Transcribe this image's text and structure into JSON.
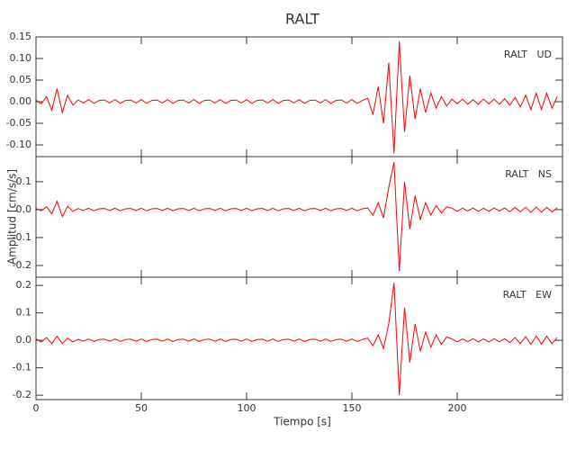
{
  "chart_data": [
    {
      "type": "line",
      "title": "RALT",
      "label": "RALT   UD",
      "color": "#ff0000",
      "xlim": [
        0,
        250
      ],
      "ylim": [
        -0.127,
        0.15
      ],
      "yticks": [
        0.15,
        {
          "value": 0.1,
          "label": "0.10"
        },
        0.05,
        {
          "value": 0,
          "label": "0.00"
        },
        -0.05,
        {
          "value": -0.1,
          "label": "-0.10"
        }
      ],
      "x": [
        0,
        2.5,
        5,
        7.5,
        10,
        12.5,
        15,
        17.5,
        20,
        22.5,
        25,
        27.5,
        30,
        32.5,
        35,
        37.5,
        40,
        42.5,
        45,
        47.5,
        50,
        52.5,
        55,
        57.5,
        60,
        62.5,
        65,
        67.5,
        70,
        72.5,
        75,
        77.5,
        80,
        82.5,
        85,
        87.5,
        90,
        92.5,
        95,
        97.5,
        100,
        102.5,
        105,
        107.5,
        110,
        112.5,
        115,
        117.5,
        120,
        122.5,
        125,
        127.5,
        130,
        132.5,
        135,
        137.5,
        140,
        142.5,
        145,
        147.5,
        150,
        152.5,
        155,
        157.5,
        160,
        162.5,
        165,
        167.5,
        170,
        172.5,
        175,
        177.5,
        180,
        182.5,
        185,
        187.5,
        190,
        192.5,
        195,
        197.5,
        200,
        202.5,
        205,
        207.5,
        210,
        212.5,
        215,
        217.5,
        220,
        222.5,
        225,
        227.5,
        230,
        232.5,
        235,
        237.5,
        240,
        242.5,
        245,
        247.5
      ],
      "values": [
        0.004,
        -0.005,
        0.012,
        -0.02,
        0.03,
        -0.025,
        0.015,
        -0.008,
        0.004,
        -0.003,
        0.005,
        -0.004,
        0.003,
        0.004,
        -0.003,
        0.005,
        -0.004,
        0.003,
        0.004,
        -0.003,
        0.005,
        -0.004,
        0.003,
        0.004,
        -0.003,
        0.005,
        -0.004,
        0.003,
        0.004,
        -0.003,
        0.005,
        -0.004,
        0.003,
        0.004,
        -0.003,
        0.005,
        -0.004,
        0.003,
        0.004,
        -0.003,
        0.005,
        -0.004,
        0.003,
        0.004,
        -0.003,
        0.005,
        -0.004,
        0.003,
        0.004,
        -0.003,
        0.005,
        -0.004,
        0.003,
        0.004,
        -0.003,
        0.005,
        -0.004,
        0.003,
        0.004,
        -0.003,
        0.005,
        -0.004,
        0.003,
        0.008,
        -0.03,
        0.035,
        -0.05,
        0.09,
        -0.12,
        0.14,
        -0.07,
        0.06,
        -0.04,
        0.03,
        -0.025,
        0.02,
        -0.015,
        0.012,
        -0.01,
        0.006,
        -0.005,
        0.006,
        -0.006,
        0.005,
        -0.006,
        0.006,
        -0.005,
        0.006,
        -0.006,
        0.007,
        -0.008,
        0.01,
        -0.012,
        0.015,
        -0.018,
        0.02,
        -0.018,
        0.02,
        -0.015,
        0.012
      ]
    },
    {
      "type": "line",
      "label": "RALT   NS",
      "y_label": "Amplitud [cm/s/s]",
      "color": "#ff0000",
      "xlim": [
        0,
        250
      ],
      "ylim": [
        -0.242,
        0.19
      ],
      "yticks": [
        0.1,
        {
          "value": 0,
          "label": "0.0"
        },
        -0.1,
        -0.2
      ],
      "x": [
        0,
        2.5,
        5,
        7.5,
        10,
        12.5,
        15,
        17.5,
        20,
        22.5,
        25,
        27.5,
        30,
        32.5,
        35,
        37.5,
        40,
        42.5,
        45,
        47.5,
        50,
        52.5,
        55,
        57.5,
        60,
        62.5,
        65,
        67.5,
        70,
        72.5,
        75,
        77.5,
        80,
        82.5,
        85,
        87.5,
        90,
        92.5,
        95,
        97.5,
        100,
        102.5,
        105,
        107.5,
        110,
        112.5,
        115,
        117.5,
        120,
        122.5,
        125,
        127.5,
        130,
        132.5,
        135,
        137.5,
        140,
        142.5,
        145,
        147.5,
        150,
        152.5,
        155,
        157.5,
        160,
        162.5,
        165,
        167.5,
        170,
        172.5,
        175,
        177.5,
        180,
        182.5,
        185,
        187.5,
        190,
        192.5,
        195,
        197.5,
        200,
        202.5,
        205,
        207.5,
        210,
        212.5,
        215,
        217.5,
        220,
        222.5,
        225,
        227.5,
        230,
        232.5,
        235,
        237.5,
        240,
        242.5,
        245,
        247.5
      ],
      "values": [
        0.004,
        -0.004,
        0.01,
        -0.015,
        0.03,
        -0.025,
        0.012,
        -0.006,
        0.004,
        -0.003,
        0.005,
        -0.004,
        0.003,
        0.004,
        -0.003,
        0.005,
        -0.004,
        0.003,
        0.004,
        -0.003,
        0.005,
        -0.004,
        0.003,
        0.004,
        -0.003,
        0.005,
        -0.004,
        0.003,
        0.004,
        -0.003,
        0.005,
        -0.004,
        0.003,
        0.004,
        -0.003,
        0.005,
        -0.004,
        0.003,
        0.004,
        -0.003,
        0.005,
        -0.004,
        0.003,
        0.004,
        -0.003,
        0.005,
        -0.004,
        0.003,
        0.004,
        -0.003,
        0.005,
        -0.004,
        0.003,
        0.004,
        -0.003,
        0.005,
        -0.004,
        0.003,
        0.004,
        -0.003,
        0.005,
        -0.004,
        0.003,
        0.006,
        -0.02,
        0.025,
        -0.03,
        0.08,
        0.17,
        -0.22,
        0.1,
        -0.07,
        0.05,
        -0.035,
        0.025,
        -0.02,
        0.015,
        -0.012,
        0.01,
        0.005,
        -0.006,
        0.005,
        -0.005,
        0.006,
        -0.006,
        0.005,
        -0.006,
        0.006,
        -0.005,
        0.006,
        -0.007,
        0.008,
        -0.008,
        0.009,
        -0.01,
        0.009,
        -0.009,
        0.008,
        -0.008,
        0.007
      ]
    },
    {
      "type": "line",
      "label": "RALT   EW",
      "x_label": "Tiempo [s]",
      "color": "#ff0000",
      "xlim": [
        0,
        250
      ],
      "xticks": [
        0,
        50,
        100,
        150,
        200
      ],
      "ylim": [
        -0.216,
        0.23
      ],
      "yticks": [
        0.2,
        0.1,
        {
          "value": 0,
          "label": "0.0"
        },
        -0.1,
        -0.2
      ],
      "x": [
        0,
        2.5,
        5,
        7.5,
        10,
        12.5,
        15,
        17.5,
        20,
        22.5,
        25,
        27.5,
        30,
        32.5,
        35,
        37.5,
        40,
        42.5,
        45,
        47.5,
        50,
        52.5,
        55,
        57.5,
        60,
        62.5,
        65,
        67.5,
        70,
        72.5,
        75,
        77.5,
        80,
        82.5,
        85,
        87.5,
        90,
        92.5,
        95,
        97.5,
        100,
        102.5,
        105,
        107.5,
        110,
        112.5,
        115,
        117.5,
        120,
        122.5,
        125,
        127.5,
        130,
        132.5,
        135,
        137.5,
        140,
        142.5,
        145,
        147.5,
        150,
        152.5,
        155,
        157.5,
        160,
        162.5,
        165,
        167.5,
        170,
        172.5,
        175,
        177.5,
        180,
        182.5,
        185,
        187.5,
        190,
        192.5,
        195,
        197.5,
        200,
        202.5,
        205,
        207.5,
        210,
        212.5,
        215,
        217.5,
        220,
        222.5,
        225,
        227.5,
        230,
        232.5,
        235,
        237.5,
        240,
        242.5,
        245,
        247.5
      ],
      "values": [
        0.005,
        -0.006,
        0.01,
        -0.012,
        0.015,
        -0.012,
        0.008,
        -0.006,
        0.004,
        -0.003,
        0.005,
        -0.004,
        0.003,
        0.004,
        -0.003,
        0.005,
        -0.004,
        0.003,
        0.004,
        -0.003,
        0.005,
        -0.004,
        0.003,
        0.004,
        -0.003,
        0.005,
        -0.004,
        0.003,
        0.004,
        -0.003,
        0.005,
        -0.004,
        0.003,
        0.004,
        -0.003,
        0.005,
        -0.004,
        0.003,
        0.004,
        -0.003,
        0.005,
        -0.004,
        0.003,
        0.004,
        -0.003,
        0.005,
        -0.004,
        0.003,
        0.004,
        -0.003,
        0.005,
        -0.004,
        0.003,
        0.004,
        -0.003,
        0.005,
        -0.004,
        0.003,
        0.004,
        -0.003,
        0.005,
        -0.004,
        0.003,
        0.008,
        -0.02,
        0.02,
        -0.03,
        0.06,
        0.21,
        -0.2,
        0.12,
        -0.08,
        0.06,
        -0.04,
        0.03,
        -0.025,
        0.02,
        -0.015,
        0.012,
        0.005,
        -0.006,
        0.005,
        -0.005,
        0.006,
        -0.006,
        0.005,
        -0.006,
        0.006,
        -0.005,
        0.006,
        -0.008,
        0.01,
        -0.012,
        0.014,
        -0.015,
        0.016,
        -0.014,
        0.015,
        -0.012,
        0.01
      ]
    }
  ]
}
